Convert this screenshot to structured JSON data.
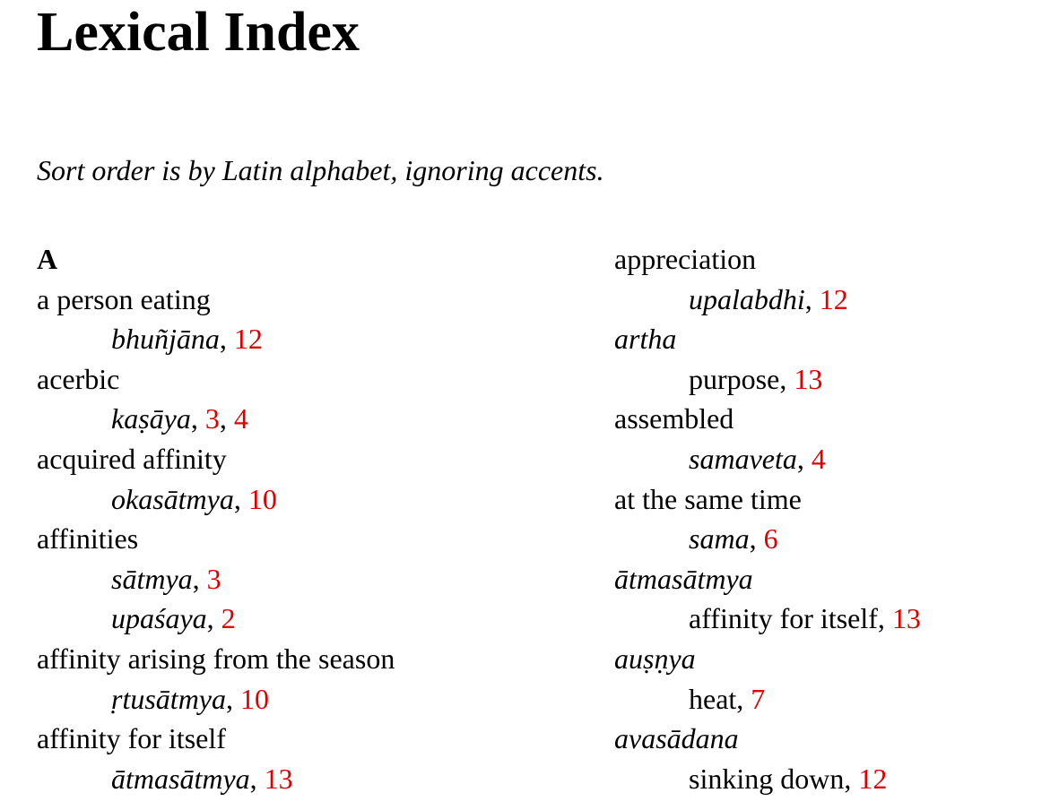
{
  "title": "Lexical Index",
  "note": "Sort order is by Latin alphabet, ignoring accents.",
  "left_column": {
    "letter": "A",
    "entries": [
      {
        "head": "a person eating",
        "head_italic": false,
        "subs": [
          {
            "term": "bhuñjāna",
            "italic": true,
            "pages": [
              "12"
            ]
          }
        ]
      },
      {
        "head": "acerbic",
        "head_italic": false,
        "subs": [
          {
            "term": "kaṣāya",
            "italic": true,
            "pages": [
              "3",
              "4"
            ]
          }
        ]
      },
      {
        "head": "acquired affinity",
        "head_italic": false,
        "subs": [
          {
            "term": "okasātmya",
            "italic": true,
            "pages": [
              "10"
            ]
          }
        ]
      },
      {
        "head": "affinities",
        "head_italic": false,
        "subs": [
          {
            "term": "sātmya",
            "italic": true,
            "pages": [
              "3"
            ]
          },
          {
            "term": "upaśaya",
            "italic": true,
            "pages": [
              "2"
            ]
          }
        ]
      },
      {
        "head": "affinity arising from the season",
        "head_italic": false,
        "subs": [
          {
            "term": "ṛtusātmya",
            "italic": true,
            "pages": [
              "10"
            ]
          }
        ]
      },
      {
        "head": "affinity for itself",
        "head_italic": false,
        "subs": [
          {
            "term": "ātmasātmya",
            "italic": true,
            "pages": [
              "13"
            ]
          }
        ]
      }
    ]
  },
  "right_column": {
    "entries": [
      {
        "head": "appreciation",
        "head_italic": false,
        "subs": [
          {
            "term": "upalabdhi",
            "italic": true,
            "pages": [
              "12"
            ]
          }
        ]
      },
      {
        "head": "artha",
        "head_italic": true,
        "subs": [
          {
            "term": "purpose",
            "italic": false,
            "pages": [
              "13"
            ]
          }
        ]
      },
      {
        "head": "assembled",
        "head_italic": false,
        "subs": [
          {
            "term": "samaveta",
            "italic": true,
            "pages": [
              "4"
            ]
          }
        ]
      },
      {
        "head": "at the same time",
        "head_italic": false,
        "subs": [
          {
            "term": "sama",
            "italic": true,
            "pages": [
              "6"
            ]
          }
        ]
      },
      {
        "head": "ātmasātmya",
        "head_italic": true,
        "subs": [
          {
            "term": "affinity for itself",
            "italic": false,
            "pages": [
              "13"
            ]
          }
        ]
      },
      {
        "head": "auṣṇya",
        "head_italic": true,
        "subs": [
          {
            "term": "heat",
            "italic": false,
            "pages": [
              "7"
            ]
          }
        ]
      },
      {
        "head": "avasādana",
        "head_italic": true,
        "subs": [
          {
            "term": "sinking down",
            "italic": false,
            "pages": [
              "12"
            ]
          }
        ]
      }
    ]
  },
  "colors": {
    "page_ref": "#e00000",
    "text": "#000000",
    "background": "#ffffff"
  }
}
